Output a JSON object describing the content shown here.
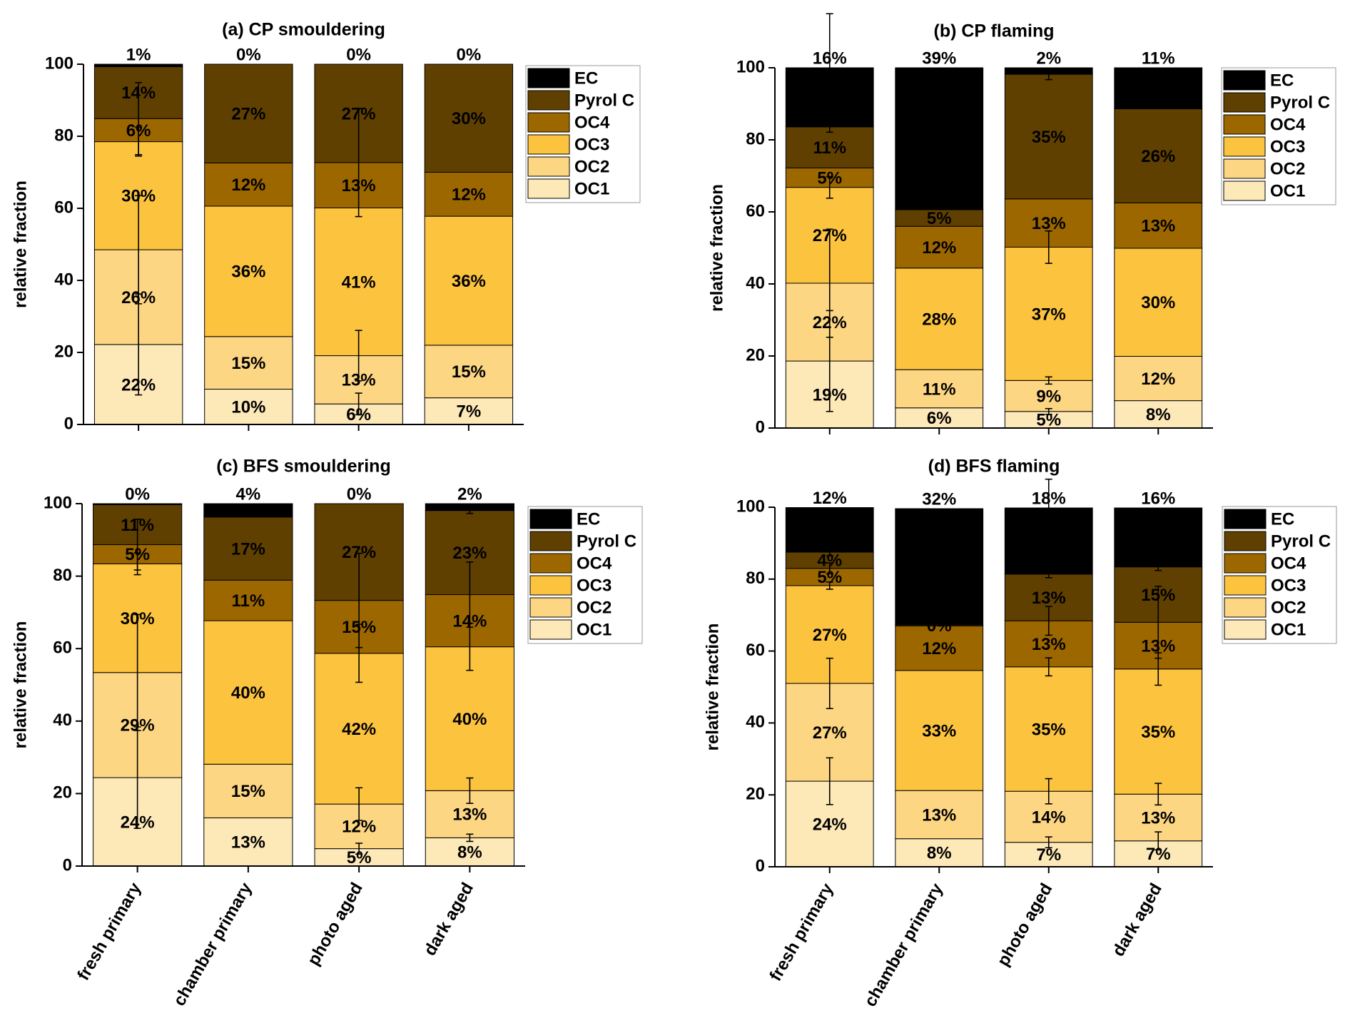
{
  "chart_data": [
    {
      "type": "bar",
      "stacked": true,
      "title": "(a) CP smouldering",
      "ylabel": "relative fraction",
      "categories": [
        null,
        null,
        null,
        null
      ],
      "ylim": [
        0,
        100
      ],
      "yticks": [
        0,
        20,
        40,
        60,
        80,
        100
      ],
      "legend": "right",
      "series": [
        {
          "name": "OC1",
          "color": "#fde8b8",
          "values": [
            22.2,
            9.8,
            5.7,
            7.4
          ],
          "value_labels": [
            "22%",
            "10%",
            "6%",
            "7%"
          ],
          "errors": [
            14,
            null,
            3,
            null
          ]
        },
        {
          "name": "OC2",
          "color": "#fdd683",
          "values": [
            26.3,
            14.6,
            13.4,
            14.6
          ],
          "value_labels": [
            "26%",
            "15%",
            "13%",
            "15%"
          ],
          "errors": [
            15,
            null,
            7,
            null
          ]
        },
        {
          "name": "OC3",
          "color": "#fcc33f",
          "values": [
            30.0,
            36.2,
            41.0,
            35.8
          ],
          "value_labels": [
            "30%",
            "36%",
            "41%",
            "36%"
          ],
          "errors": [
            4,
            null,
            null,
            null
          ]
        },
        {
          "name": "OC4",
          "color": "#9d6700",
          "values": [
            6.4,
            12.0,
            12.6,
            12.2
          ],
          "value_labels": [
            "6%",
            "12%",
            "13%",
            "12%"
          ],
          "errors": [
            10,
            null,
            15,
            null
          ]
        },
        {
          "name": "Pyrol C",
          "color": "#604000",
          "values": [
            14.4,
            27.4,
            27.3,
            30.0
          ],
          "value_labels": [
            "14%",
            "27%",
            "27%",
            "30%"
          ]
        },
        {
          "name": "EC",
          "color": "#000000",
          "values": [
            0.7,
            0,
            0,
            0
          ],
          "value_labels": [
            "1%",
            "0%",
            "0%",
            "0%"
          ]
        }
      ]
    },
    {
      "type": "bar",
      "stacked": true,
      "title": "(b) CP flaming",
      "ylabel": "relative fraction",
      "categories": [
        null,
        null,
        null,
        null
      ],
      "ylim": [
        0,
        100
      ],
      "yticks": [
        0,
        20,
        40,
        60,
        80,
        100
      ],
      "legend": "right",
      "series": [
        {
          "name": "OC1",
          "color": "#fde8b8",
          "values": [
            18.6,
            5.6,
            4.6,
            7.6
          ],
          "value_labels": [
            "19%",
            "6%",
            "5%",
            "8%"
          ],
          "errors": [
            14,
            null,
            0.8,
            null
          ]
        },
        {
          "name": "OC2",
          "color": "#fdd683",
          "values": [
            21.6,
            10.6,
            8.6,
            12.3
          ],
          "value_labels": [
            "22%",
            "11%",
            "9%",
            "12%"
          ],
          "errors": [
            15,
            null,
            1,
            null
          ]
        },
        {
          "name": "OC3",
          "color": "#fcc33f",
          "values": [
            26.6,
            28.2,
            37.0,
            30.0
          ],
          "value_labels": [
            "27%",
            "28%",
            "37%",
            "30%"
          ],
          "errors": [
            3,
            null,
            4.5,
            null
          ]
        },
        {
          "name": "OC4",
          "color": "#9d6700",
          "values": [
            5.4,
            11.6,
            13.4,
            12.6
          ],
          "value_labels": [
            "5%",
            "12%",
            "13%",
            "13%"
          ]
        },
        {
          "name": "Pyrol C",
          "color": "#604000",
          "values": [
            11.4,
            4.6,
            34.6,
            26.1
          ],
          "value_labels": [
            "11%",
            "5%",
            "35%",
            "26%"
          ],
          "errors": [
            1.5,
            null,
            1.5,
            null
          ]
        },
        {
          "name": "EC",
          "color": "#000000",
          "values": [
            16.4,
            39.4,
            1.8,
            11.4
          ],
          "value_labels": [
            "16%",
            "39%",
            "2%",
            "11%"
          ],
          "errors": [
            15,
            null,
            null,
            null
          ]
        }
      ]
    },
    {
      "type": "bar",
      "stacked": true,
      "title": "(c) BFS smouldering",
      "ylabel": "relative fraction",
      "categories": [
        "fresh primary",
        "chamber primary",
        "photo aged",
        "dark aged"
      ],
      "ylim": [
        0,
        100
      ],
      "yticks": [
        0,
        20,
        40,
        60,
        80,
        100
      ],
      "legend": "right",
      "series": [
        {
          "name": "OC1",
          "color": "#fde8b8",
          "values": [
            24.4,
            13.3,
            4.8,
            7.8
          ],
          "value_labels": [
            "24%",
            "13%",
            "5%",
            "8%"
          ],
          "errors": [
            14,
            null,
            1.5,
            1
          ]
        },
        {
          "name": "OC2",
          "color": "#fdd683",
          "values": [
            29.0,
            14.8,
            12.3,
            13.0
          ],
          "value_labels": [
            "29%",
            "15%",
            "12%",
            "13%"
          ],
          "errors": [
            16,
            null,
            4.5,
            3.5
          ]
        },
        {
          "name": "OC3",
          "color": "#fcc33f",
          "values": [
            30.0,
            39.6,
            41.6,
            39.7
          ],
          "value_labels": [
            "30%",
            "40%",
            "42%",
            "40%"
          ],
          "errors": [
            3,
            null,
            8,
            6.5
          ]
        },
        {
          "name": "OC4",
          "color": "#9d6700",
          "values": [
            5.3,
            11.2,
            14.6,
            14.4
          ],
          "value_labels": [
            "5%",
            "11%",
            "15%",
            "14%"
          ],
          "errors": [
            7,
            null,
            13,
            9
          ]
        },
        {
          "name": "Pyrol C",
          "color": "#604000",
          "values": [
            11.0,
            17.4,
            26.7,
            23.2
          ],
          "value_labels": [
            "11%",
            "17%",
            "27%",
            "23%"
          ],
          "errors": [
            null,
            null,
            null,
            0.8
          ]
        },
        {
          "name": "EC",
          "color": "#000000",
          "values": [
            0.3,
            3.7,
            0,
            1.9
          ],
          "value_labels": [
            "0%",
            "4%",
            "0%",
            "2%"
          ]
        }
      ]
    },
    {
      "type": "bar",
      "stacked": true,
      "title": "(d) BFS flaming",
      "ylabel": "relative fraction",
      "categories": [
        "fresh primary",
        "chamber primary",
        "photo aged",
        "dark aged"
      ],
      "ylim": [
        0,
        100
      ],
      "yticks": [
        0,
        20,
        40,
        60,
        80,
        100
      ],
      "legend": "right",
      "series": [
        {
          "name": "OC1",
          "color": "#fde8b8",
          "values": [
            23.8,
            7.8,
            6.8,
            7.2
          ],
          "value_labels": [
            "24%",
            "8%",
            "7%",
            "7%"
          ],
          "errors": [
            6.5,
            null,
            1.5,
            2.5
          ]
        },
        {
          "name": "OC2",
          "color": "#fdd683",
          "values": [
            27.2,
            13.4,
            14.2,
            13.0
          ],
          "value_labels": [
            "27%",
            "13%",
            "14%",
            "13%"
          ],
          "errors": [
            7,
            null,
            3.5,
            3
          ]
        },
        {
          "name": "OC3",
          "color": "#fcc33f",
          "values": [
            27.2,
            33.4,
            34.6,
            34.8
          ],
          "value_labels": [
            "27%",
            "33%",
            "35%",
            "35%"
          ],
          "errors": [
            1,
            null,
            2.5,
            4.5
          ]
        },
        {
          "name": "OC4",
          "color": "#9d6700",
          "values": [
            4.8,
            12.4,
            12.8,
            13.0
          ],
          "value_labels": [
            "5%",
            "12%",
            "13%",
            "13%"
          ],
          "errors": [
            1.5,
            null,
            4,
            10
          ]
        },
        {
          "name": "Pyrol C",
          "color": "#604000",
          "values": [
            4.5,
            0.3,
            13.0,
            15.4
          ],
          "value_labels": [
            "4%",
            "0%",
            "13%",
            "15%"
          ],
          "errors": [
            1,
            null,
            1,
            1
          ]
        },
        {
          "name": "EC",
          "color": "#000000",
          "values": [
            12.4,
            32.3,
            18.4,
            16.4
          ],
          "value_labels": [
            "12%",
            "32%",
            "18%",
            "16%"
          ],
          "errors": [
            null,
            null,
            8,
            null
          ]
        }
      ]
    }
  ]
}
